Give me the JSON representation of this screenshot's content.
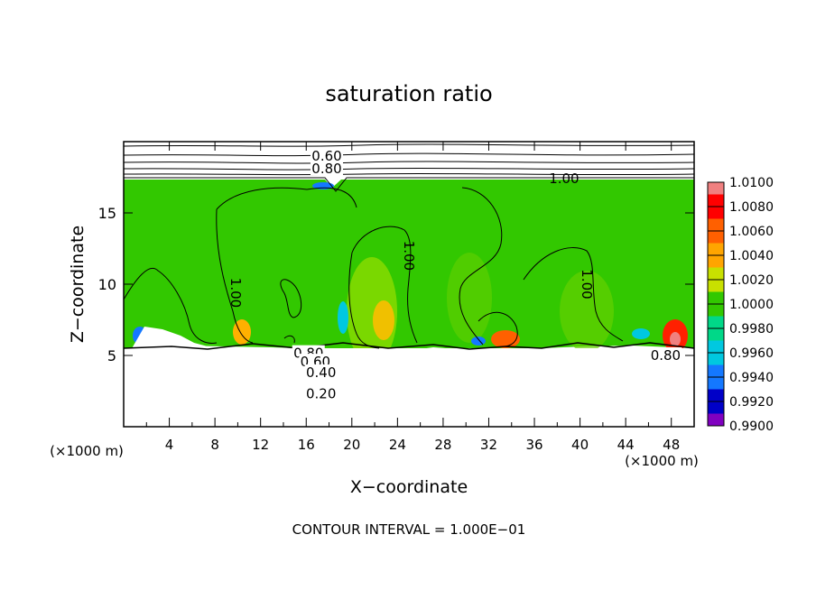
{
  "chart_data": {
    "type": "heatmap",
    "title": "saturation ratio",
    "xlabel": "X−coordinate",
    "ylabel": "Z−coordinate",
    "x_unit_left": "(×1000 m)",
    "x_unit_right": "(×1000 m)",
    "xlim": [
      0,
      50
    ],
    "ylim": [
      0,
      20
    ],
    "x_ticks": [
      4,
      8,
      12,
      16,
      20,
      24,
      28,
      32,
      36,
      40,
      44,
      48
    ],
    "y_ticks": [
      5,
      10,
      15
    ],
    "footer": "CONTOUR INTERVAL = 1.000E−01",
    "colorbar": {
      "labels": [
        "1.0100",
        "1.0080",
        "1.0060",
        "1.0040",
        "1.0020",
        "1.0000",
        "0.9980",
        "0.9960",
        "0.9940",
        "0.9920",
        "0.9900"
      ],
      "colors": [
        "#f08080",
        "#ff0000",
        "#ff6000",
        "#ffa500",
        "#c8e000",
        "#32c800",
        "#00d888",
        "#00c8e0",
        "#1478ff",
        "#0000c8",
        "#8000c0"
      ]
    },
    "contour_labels": [
      {
        "text": "0.60",
        "x": 17.8,
        "y": 19.0
      },
      {
        "text": "0.80",
        "x": 17.8,
        "y": 18.1
      },
      {
        "text": "1.00",
        "x": 38.6,
        "y": 17.4
      },
      {
        "text": "1.00",
        "x": 9.8,
        "y": 9.4
      },
      {
        "text": "1.00",
        "x": 25.0,
        "y": 12.0
      },
      {
        "text": "1.00",
        "x": 40.6,
        "y": 10.0
      },
      {
        "text": "0.80",
        "x": 16.2,
        "y": 5.15
      },
      {
        "text": "0.60",
        "x": 16.8,
        "y": 4.55
      },
      {
        "text": "0.40",
        "x": 17.3,
        "y": 3.8
      },
      {
        "text": "0.20",
        "x": 17.3,
        "y": 2.3
      },
      {
        "text": "0.80",
        "x": 47.5,
        "y": 5.0
      }
    ],
    "colors": {
      "background_green": "#32c800",
      "contour": "#000000"
    }
  }
}
